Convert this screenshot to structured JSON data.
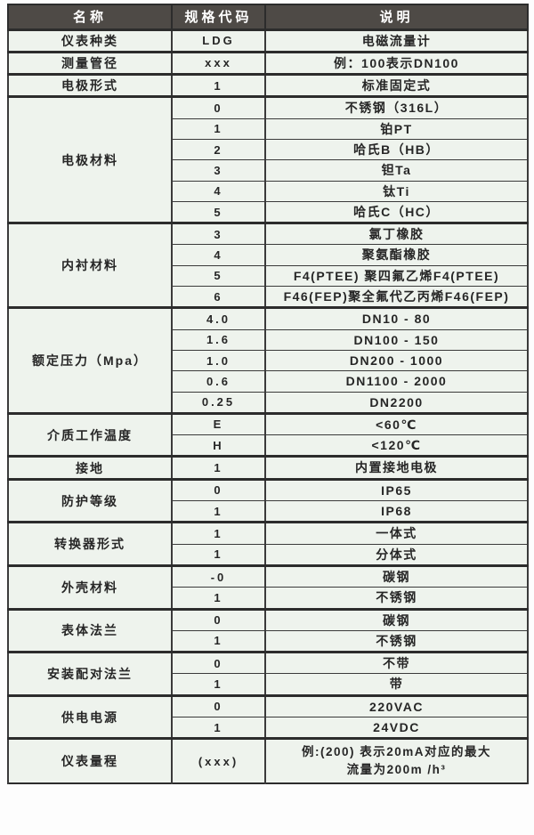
{
  "colors": {
    "page_bg": "#fdfdfd",
    "header_bg": "#4e4a46",
    "header_text": "#ffffff",
    "cell_bg": "#eef3ed",
    "border": "#3a3a3a",
    "border_strong": "#2c2c2c",
    "text": "#262626"
  },
  "table": {
    "headers": [
      "名称",
      "规格代码",
      "说明"
    ],
    "groups": [
      {
        "name": "仪表种类",
        "rows": [
          {
            "code": "LDG",
            "desc": "电磁流量计"
          }
        ]
      },
      {
        "name": "测量管径",
        "rows": [
          {
            "code": "xxx",
            "desc": "例：100表示DN100"
          }
        ]
      },
      {
        "name": "电极形式",
        "rows": [
          {
            "code": "1",
            "desc": "标准固定式"
          }
        ]
      },
      {
        "name": "电极材料",
        "rows": [
          {
            "code": "0",
            "desc": "不锈钢（316L）"
          },
          {
            "code": "1",
            "desc": "铂PT"
          },
          {
            "code": "2",
            "desc": "哈氏B（HB）"
          },
          {
            "code": "3",
            "desc": "钽Ta"
          },
          {
            "code": "4",
            "desc": "钛Ti"
          },
          {
            "code": "5",
            "desc": "哈氏C（HC）"
          }
        ]
      },
      {
        "name": "内衬材料",
        "rows": [
          {
            "code": "3",
            "desc": "氯丁橡胶"
          },
          {
            "code": "4",
            "desc": "聚氨酯橡胶"
          },
          {
            "code": "5",
            "desc": "F4(PTEE) 聚四氟乙烯F4(PTEE)"
          },
          {
            "code": "6",
            "desc": "F46(FEP)聚全氟代乙丙烯F46(FEP)"
          }
        ]
      },
      {
        "name": "额定压力（Mpa）",
        "rows": [
          {
            "code": "4.0",
            "desc": "DN10 - 80"
          },
          {
            "code": "1.6",
            "desc": "DN100 - 150"
          },
          {
            "code": "1.0",
            "desc": "DN200 - 1000"
          },
          {
            "code": "0.6",
            "desc": "DN1100 - 2000"
          },
          {
            "code": "0.25",
            "desc": "DN2200"
          }
        ]
      },
      {
        "name": "介质工作温度",
        "rows": [
          {
            "code": "E",
            "desc": "<60℃"
          },
          {
            "code": "H",
            "desc": "<120℃"
          }
        ]
      },
      {
        "name": "接地",
        "rows": [
          {
            "code": "1",
            "desc": "内置接地电极"
          }
        ]
      },
      {
        "name": "防护等级",
        "rows": [
          {
            "code": "0",
            "desc": "IP65"
          },
          {
            "code": "1",
            "desc": "IP68"
          }
        ]
      },
      {
        "name": "转换器形式",
        "rows": [
          {
            "code": "1",
            "desc": "一体式"
          },
          {
            "code": "1",
            "desc": "分体式"
          }
        ]
      },
      {
        "name": "外壳材料",
        "rows": [
          {
            "code": "-0",
            "desc": "碳钢"
          },
          {
            "code": "1",
            "desc": "不锈钢"
          }
        ]
      },
      {
        "name": "表体法兰",
        "rows": [
          {
            "code": "0",
            "desc": "碳钢"
          },
          {
            "code": "1",
            "desc": "不锈钢"
          }
        ]
      },
      {
        "name": "安装配对法兰",
        "rows": [
          {
            "code": "0",
            "desc": "不带"
          },
          {
            "code": "1",
            "desc": "带"
          }
        ]
      },
      {
        "name": "供电电源",
        "rows": [
          {
            "code": "0",
            "desc": "220VAC"
          },
          {
            "code": "1",
            "desc": "24VDC"
          }
        ]
      },
      {
        "name": "仪表量程",
        "rows": [
          {
            "code": "(xxx)",
            "desc": "例:(200) 表示20mA对应的最大\n流量为200m /h³"
          }
        ]
      }
    ]
  }
}
